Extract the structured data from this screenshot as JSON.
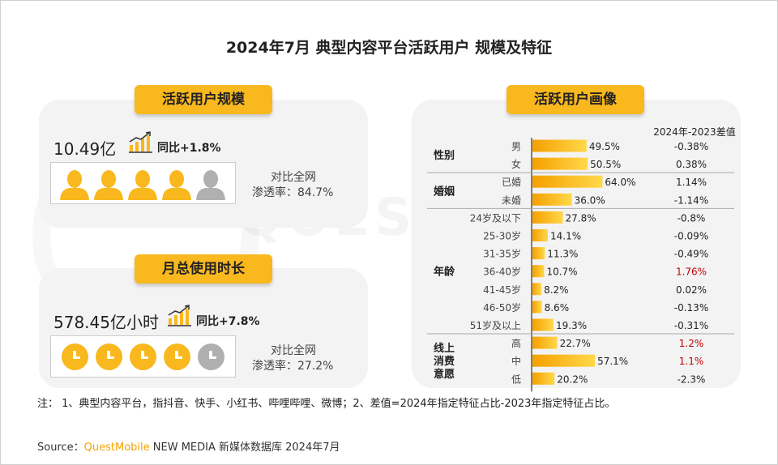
{
  "title": "2024年7月 典型内容平台活跃用户 规模及特征",
  "left": {
    "scale": {
      "pill": "活跃用户规模",
      "value": "10.49亿",
      "growth": "同比+1.8%",
      "penetration_label": "对比全网",
      "penetration_value": "渗透率：84.7%"
    },
    "usage": {
      "pill": "月总使用时长",
      "value": "578.45亿小时",
      "growth": "同比+7.8%",
      "penetration_label": "对比全网",
      "penetration_value": "渗透率：27.2%"
    }
  },
  "right": {
    "pill": "活跃用户画像",
    "diff_header": "2024年-2023差值"
  },
  "chart_data": {
    "type": "bar",
    "orientation": "horizontal",
    "title": "活跃用户画像",
    "value_unit": "%",
    "diff_header": "2024年-2023差值",
    "groups": [
      {
        "name": "性别",
        "rows": [
          {
            "label": "男",
            "value": 49.5,
            "value_text": "49.5%",
            "diff": "-0.38%",
            "diff_highlight": false
          },
          {
            "label": "女",
            "value": 50.5,
            "value_text": "50.5%",
            "diff": "0.38%",
            "diff_highlight": false
          }
        ]
      },
      {
        "name": "婚姻",
        "rows": [
          {
            "label": "已婚",
            "value": 64.0,
            "value_text": "64.0%",
            "diff": "1.14%",
            "diff_highlight": false
          },
          {
            "label": "未婚",
            "value": 36.0,
            "value_text": "36.0%",
            "diff": "-1.14%",
            "diff_highlight": false
          }
        ]
      },
      {
        "name": "年龄",
        "rows": [
          {
            "label": "24岁及以下",
            "value": 27.8,
            "value_text": "27.8%",
            "diff": "-0.8%",
            "diff_highlight": false
          },
          {
            "label": "25-30岁",
            "value": 14.1,
            "value_text": "14.1%",
            "diff": "-0.09%",
            "diff_highlight": false
          },
          {
            "label": "31-35岁",
            "value": 11.3,
            "value_text": "11.3%",
            "diff": "-0.49%",
            "diff_highlight": false
          },
          {
            "label": "36-40岁",
            "value": 10.7,
            "value_text": "10.7%",
            "diff": "1.76%",
            "diff_highlight": true
          },
          {
            "label": "41-45岁",
            "value": 8.2,
            "value_text": "8.2%",
            "diff": "0.02%",
            "diff_highlight": false
          },
          {
            "label": "46-50岁",
            "value": 8.6,
            "value_text": "8.6%",
            "diff": "-0.13%",
            "diff_highlight": false
          },
          {
            "label": "51岁及以上",
            "value": 19.3,
            "value_text": "19.3%",
            "diff": "-0.31%",
            "diff_highlight": false
          }
        ]
      },
      {
        "name": "线上消费意愿",
        "name_lines": [
          "线上",
          "消费",
          "意愿"
        ],
        "rows": [
          {
            "label": "高",
            "value": 22.7,
            "value_text": "22.7%",
            "diff": "1.2%",
            "diff_highlight": true
          },
          {
            "label": "中",
            "value": 57.1,
            "value_text": "57.1%",
            "diff": "1.1%",
            "diff_highlight": true
          },
          {
            "label": "低",
            "value": 20.2,
            "value_text": "20.2%",
            "diff": "-2.3%",
            "diff_highlight": false
          }
        ]
      }
    ],
    "xlim": [
      0,
      100
    ]
  },
  "footer": {
    "note": "注：  1、典型内容平台，指抖音、快手、小红书、哔哩哔哩、微博；2、差值=2024年指定特征占比-2023年指定特征占比。",
    "source_prefix": "Source：",
    "source_brand": "QuestMobile",
    "source_rest": " NEW MEDIA 新媒体数据库 2024年7月"
  },
  "watermark": "QUESTMOBILE",
  "colors": {
    "accent": "#f8b81e",
    "bar_start": "#f5a000",
    "bar_end": "#ffd84a",
    "highlight_red": "#c00000",
    "person_gray": "#b0b0b0",
    "panel_bg": "#f3f3f3"
  },
  "icons": {
    "person": "person-icon",
    "clock": "clock-icon",
    "growth": "growth-chart-icon"
  },
  "active_people": 4,
  "total_people": 5,
  "active_clocks": 4,
  "total_clocks": 5
}
